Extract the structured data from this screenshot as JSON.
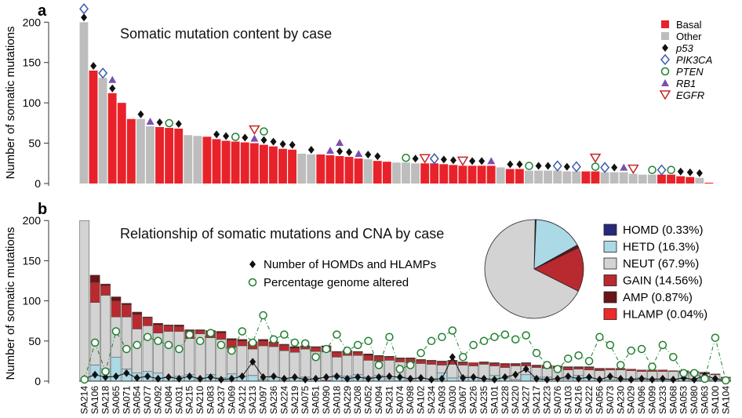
{
  "chart_data": [
    {
      "panel_label": "a",
      "type": "bar",
      "title": "Somatic mutation content by case",
      "ylabel": "Number of somatic mutations",
      "ylim": [
        0,
        210
      ],
      "yticks": [
        0,
        50,
        100,
        150,
        200
      ],
      "legend": [
        {
          "label": "Basal",
          "kind": "bar",
          "color": "#e8222a"
        },
        {
          "label": "Other",
          "kind": "bar",
          "color": "#bdbdbd"
        },
        {
          "label": "p53",
          "kind": "diamond",
          "color": "#111111"
        },
        {
          "label": "PIK3CA",
          "kind": "hollow-diamond",
          "color": "#3a5bb0"
        },
        {
          "label": "PTEN",
          "kind": "circle",
          "color": "#1e7f2e"
        },
        {
          "label": "RB1",
          "kind": "triangle",
          "color": "#7a4fb0"
        },
        {
          "label": "EGFR",
          "kind": "inverted-triangle",
          "color": "#c0282c"
        }
      ],
      "legend_position": "top-right",
      "values": [
        200,
        140,
        131,
        112,
        100,
        80,
        80,
        71,
        70,
        69,
        68,
        60,
        59,
        58,
        55,
        53,
        52,
        51,
        50,
        48,
        46,
        43,
        42,
        37,
        36,
        36,
        35,
        34,
        33,
        31,
        30,
        28,
        27,
        26,
        26,
        25,
        25,
        25,
        24,
        23,
        22,
        22,
        22,
        22,
        20,
        18,
        18,
        16,
        16,
        16,
        16,
        15,
        15,
        15,
        15,
        14,
        14,
        14,
        12,
        11,
        11,
        11,
        11,
        9,
        8,
        7,
        1
      ],
      "category_type": [
        "O",
        "B",
        "O",
        "B",
        "B",
        "B",
        "O",
        "O",
        "B",
        "B",
        "B",
        "O",
        "O",
        "B",
        "B",
        "B",
        "B",
        "B",
        "B",
        "B",
        "B",
        "B",
        "B",
        "O",
        "O",
        "B",
        "B",
        "B",
        "B",
        "B",
        "O",
        "B",
        "B",
        "O",
        "O",
        "O",
        "B",
        "B",
        "B",
        "B",
        "B",
        "B",
        "B",
        "B",
        "O",
        "B",
        "B",
        "O",
        "O",
        "O",
        "O",
        "O",
        "O",
        "B",
        "B",
        "O",
        "O",
        "O",
        "O",
        "O",
        "O",
        "B",
        "B",
        "B",
        "B",
        "O",
        "B"
      ],
      "markers": {
        "p53": [
          0,
          1,
          3,
          6,
          8,
          10,
          14,
          15,
          17,
          19,
          20,
          21,
          22,
          24,
          27,
          28,
          30,
          31,
          35,
          38,
          39,
          41,
          42,
          45,
          46,
          48,
          49,
          51,
          56,
          63,
          64,
          65
        ],
        "PIK3CA": [
          0,
          2,
          37,
          50,
          52,
          55,
          61
        ],
        "PTEN": [
          9,
          16,
          19,
          34,
          47,
          54,
          60,
          62
        ],
        "RB1": [
          3,
          7,
          18,
          26,
          27,
          29,
          43,
          57
        ],
        "EGFR": [
          18,
          36,
          40,
          54,
          58
        ]
      }
    },
    {
      "panel_label": "b",
      "type": "bar",
      "title": "Relationship of somatic mutations and CNA by case",
      "ylabel": "Number of somatic mutations",
      "ylim": [
        0,
        210
      ],
      "yticks": [
        0,
        50,
        100,
        150,
        200
      ],
      "categories": [
        "SA214",
        "SA106",
        "SA218",
        "SA065",
        "SA071",
        "SA054",
        "SA077",
        "SA092",
        "SA084",
        "SA031",
        "SA215",
        "SA210",
        "SA083",
        "SA237",
        "SA069",
        "SA212",
        "SA213",
        "SA097",
        "SA236",
        "SA224",
        "SA219",
        "SA075",
        "SA051",
        "SA090",
        "SA018",
        "SA229",
        "SA208",
        "SA052",
        "SA094",
        "SA231",
        "SA074",
        "SA098",
        "SA102",
        "SA234",
        "SA093",
        "SA030",
        "SA067",
        "SA226",
        "SA235",
        "SA101",
        "SA228",
        "SA220",
        "SA227",
        "SA217",
        "SA223",
        "SA076",
        "SA103",
        "SA216",
        "SA222",
        "SA056",
        "SA073",
        "SA230",
        "SA029",
        "SA096",
        "SA099",
        "SA233",
        "SA068",
        "SA053",
        "SA080",
        "SA063",
        "SA100",
        "SA104"
      ],
      "segment_order": [
        "HOMD",
        "HETD",
        "NEUT",
        "GAIN",
        "AMP",
        "HLAMP"
      ],
      "series": [
        {
          "name": "HETD (16.3%)",
          "color": "#abd9e6",
          "values": [
            0,
            20,
            15,
            30,
            15,
            10,
            12,
            10,
            5,
            6,
            8,
            3,
            8,
            4,
            9,
            6,
            7,
            2,
            5,
            2,
            4,
            5,
            3,
            1,
            7,
            6,
            8,
            5,
            7,
            3,
            5,
            2,
            4,
            3,
            10,
            4,
            6,
            5,
            3,
            7,
            4,
            2,
            8,
            5,
            5,
            3,
            3,
            7,
            4,
            3,
            2,
            2,
            3,
            4,
            3,
            2,
            2,
            3,
            2,
            3,
            2,
            1
          ]
        },
        {
          "name": "NEUT (67.9%)",
          "color": "#d3d3d3",
          "values": [
            200,
            78,
            92,
            50,
            65,
            55,
            57,
            50,
            57,
            56,
            45,
            56,
            46,
            48,
            33,
            38,
            33,
            42,
            38,
            36,
            32,
            35,
            34,
            36,
            23,
            26,
            24,
            21,
            18,
            23,
            19,
            21,
            18,
            18,
            10,
            17,
            14,
            14,
            18,
            12,
            13,
            17,
            11,
            12,
            11,
            13,
            11,
            8,
            10,
            10,
            12,
            12,
            10,
            8,
            9,
            10,
            10,
            7,
            8,
            6,
            6,
            3
          ]
        },
        {
          "name": "GAIN (14.56%)",
          "color": "#b82a2f",
          "values": [
            0,
            25,
            12,
            20,
            15,
            18,
            10,
            10,
            7,
            6,
            10,
            4,
            8,
            8,
            9,
            6,
            8,
            6,
            5,
            7,
            5,
            3,
            5,
            6,
            6,
            5,
            4,
            6,
            6,
            4,
            4,
            5,
            4,
            4,
            4,
            4,
            3,
            4,
            2,
            3,
            4,
            2,
            3,
            2,
            3,
            2,
            3,
            2,
            3,
            2,
            2,
            2,
            2,
            2,
            2,
            2,
            1,
            2,
            2,
            1,
            1,
            1
          ]
        },
        {
          "name": "AMP (0.87%)",
          "color": "#6a1518",
          "values": [
            0,
            9,
            2,
            5,
            2,
            3,
            1,
            2,
            1,
            2,
            1,
            1,
            1,
            2,
            2,
            2,
            1,
            2,
            1,
            1,
            2,
            1,
            1,
            1,
            1,
            1,
            1,
            2,
            1,
            1,
            1,
            1,
            1,
            1,
            1,
            1,
            1,
            0,
            1,
            1,
            1,
            1,
            1,
            1,
            1,
            1,
            1,
            1,
            1,
            1,
            0,
            0,
            0,
            0,
            0,
            0,
            0,
            1,
            0,
            1,
            0,
            0
          ]
        },
        {
          "name": "HLAMP (0.04%)",
          "color": "#ef2b2a",
          "values": [
            0,
            0,
            0,
            0,
            0,
            0,
            0,
            0,
            0,
            0,
            0,
            0,
            0,
            0,
            0,
            0,
            0,
            0,
            0,
            0,
            0,
            0,
            0,
            0,
            0,
            0,
            0,
            0,
            0,
            0,
            0,
            0,
            0,
            0,
            0,
            0,
            0,
            0,
            0,
            0,
            0,
            0,
            0,
            0,
            0,
            0,
            0,
            0,
            0,
            0,
            0,
            0,
            0,
            0,
            0,
            0,
            0,
            0,
            0,
            0,
            0,
            0
          ]
        },
        {
          "name": "HOMD (0.33%)",
          "color": "#27297a",
          "values": [
            0,
            0,
            0,
            0,
            0,
            0,
            0,
            0,
            0,
            0,
            0,
            0,
            0,
            0,
            0,
            0,
            0,
            0,
            0,
            0,
            0,
            0,
            0,
            0,
            0,
            0,
            0,
            0,
            0,
            0,
            0,
            0,
            0,
            0,
            0,
            0,
            0,
            0,
            0,
            0,
            0,
            0,
            0,
            0,
            0,
            0,
            0,
            0,
            0,
            0,
            0,
            0,
            0,
            0,
            0,
            0,
            0,
            0,
            0,
            0,
            0,
            0
          ]
        }
      ],
      "line_series": [
        {
          "name": "Number of HOMDs and HLAMPs",
          "marker": "diamond",
          "color": "#111111",
          "values": [
            3,
            8,
            5,
            6,
            10,
            4,
            6,
            3,
            5,
            3,
            6,
            3,
            5,
            2,
            3,
            6,
            24,
            5,
            6,
            3,
            5,
            2,
            3,
            5,
            6,
            3,
            5,
            3,
            5,
            6,
            5,
            3,
            4,
            2,
            3,
            30,
            4,
            5,
            3,
            2,
            5,
            8,
            15,
            3,
            2,
            3,
            6,
            3,
            5,
            2,
            6,
            3,
            2,
            3,
            2,
            3,
            2,
            4,
            2,
            7,
            3,
            1
          ]
        },
        {
          "name": "Percentage genome altered",
          "marker": "circle",
          "color": "#1e7f2e",
          "values": [
            2,
            48,
            12,
            62,
            40,
            45,
            55,
            50,
            45,
            40,
            58,
            50,
            60,
            45,
            38,
            62,
            48,
            82,
            52,
            58,
            48,
            47,
            30,
            40,
            58,
            38,
            45,
            50,
            20,
            55,
            15,
            20,
            35,
            50,
            55,
            63,
            30,
            45,
            50,
            55,
            58,
            52,
            57,
            35,
            20,
            15,
            28,
            32,
            25,
            55,
            45,
            20,
            38,
            40,
            18,
            45,
            30,
            10,
            10,
            3,
            54,
            1
          ]
        }
      ],
      "pie": {
        "slices": [
          {
            "label": "HOMD (0.33%)",
            "value": 0.33,
            "color": "#27297a"
          },
          {
            "label": "HETD (16.3%)",
            "value": 16.3,
            "color": "#abd9e6"
          },
          {
            "label": "NEUT (67.9%)",
            "value": 67.9,
            "color": "#d3d3d3"
          },
          {
            "label": "GAIN (14.56%)",
            "value": 14.56,
            "color": "#b82a2f"
          },
          {
            "label": "AMP (0.87%)",
            "value": 0.87,
            "color": "#6a1518"
          },
          {
            "label": "HLAMP (0.04%)",
            "value": 0.04,
            "color": "#ef2b2a"
          }
        ]
      },
      "legend_position": "right"
    }
  ]
}
